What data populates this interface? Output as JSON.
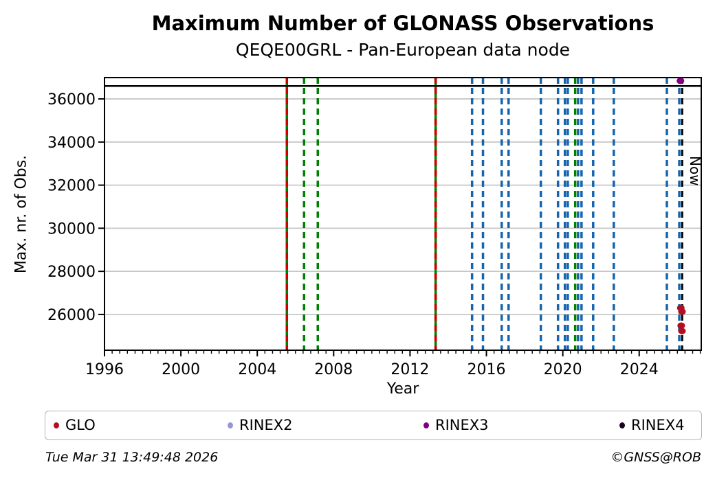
{
  "title": "Maximum Number of GLONASS Observations",
  "subtitle": "QEQE00GRL - Pan-European data node",
  "footer": {
    "timestamp": "Tue Mar 31 13:49:48 2026",
    "credit": "©GNSS@ROB"
  },
  "legend": {
    "items": [
      {
        "label": "GLO",
        "color": "#b01020"
      },
      {
        "label": "RINEX2",
        "color": "#9595d9"
      },
      {
        "label": "RINEX3",
        "color": "#800080"
      },
      {
        "label": "RINEX4",
        "color": "#1d0322"
      }
    ]
  },
  "chart_data": {
    "type": "scatter",
    "title": "Maximum Number of GLONASS Observations",
    "subtitle": "QEQE00GRL - Pan-European data node",
    "xlabel": "Year",
    "ylabel": "Max. nr. of Obs.",
    "xlim": [
      1996,
      2027.25
    ],
    "ylim": [
      24340,
      36990
    ],
    "xticks": [
      1996,
      2000,
      2004,
      2008,
      2012,
      2016,
      2020,
      2024
    ],
    "yticks": [
      26000,
      28000,
      30000,
      32000,
      34000,
      36000
    ],
    "x_minor_step": 0.4,
    "grid": "horizontal-only",
    "gridline_color": "#c6c6c6",
    "hline": {
      "y": 36600,
      "color": "#000000",
      "style": "solid"
    },
    "now_marker": {
      "x": 2026.25,
      "label": "Now",
      "color": "#000000",
      "style": "dashed"
    },
    "event_lines": [
      {
        "x": 2005.55,
        "color": "#008000",
        "style": "solid"
      },
      {
        "x": 2005.55,
        "color": "#cc0000",
        "style": "dashed"
      },
      {
        "x": 2006.45,
        "color": "#008000",
        "style": "dashed"
      },
      {
        "x": 2007.17,
        "color": "#008000",
        "style": "dashed"
      },
      {
        "x": 2013.34,
        "color": "#008000",
        "style": "solid"
      },
      {
        "x": 2013.34,
        "color": "#cc0000",
        "style": "dashed"
      },
      {
        "x": 2015.25,
        "color": "#1464af",
        "style": "dashed"
      },
      {
        "x": 2015.82,
        "color": "#1464af",
        "style": "dashed"
      },
      {
        "x": 2016.8,
        "color": "#1464af",
        "style": "dashed"
      },
      {
        "x": 2017.16,
        "color": "#1464af",
        "style": "dashed"
      },
      {
        "x": 2018.85,
        "color": "#1464af",
        "style": "dashed"
      },
      {
        "x": 2019.75,
        "color": "#1464af",
        "style": "dashed"
      },
      {
        "x": 2020.11,
        "color": "#1464af",
        "style": "dashed"
      },
      {
        "x": 2020.26,
        "color": "#1464af",
        "style": "dashed"
      },
      {
        "x": 2020.65,
        "color": "#008000",
        "style": "dashed"
      },
      {
        "x": 2020.8,
        "color": "#1464af",
        "style": "dashed"
      },
      {
        "x": 2020.98,
        "color": "#1464af",
        "style": "dashed"
      },
      {
        "x": 2021.59,
        "color": "#1464af",
        "style": "dashed"
      },
      {
        "x": 2022.67,
        "color": "#1464af",
        "style": "dashed"
      },
      {
        "x": 2025.45,
        "color": "#1464af",
        "style": "dashed"
      },
      {
        "x": 2026.1,
        "color": "#1464af",
        "style": "dashed"
      }
    ],
    "series": [
      {
        "name": "GLO",
        "color": "#b01020",
        "points": [
          [
            2026.18,
            26300
          ],
          [
            2026.24,
            26130
          ],
          [
            2026.2,
            25480
          ],
          [
            2026.24,
            25230
          ]
        ]
      },
      {
        "name": "RINEX2",
        "color": "#9595d9",
        "points": []
      },
      {
        "name": "RINEX3",
        "color": "#800080",
        "points": [
          [
            2026.16,
            36840
          ]
        ]
      },
      {
        "name": "RINEX4",
        "color": "#1d0322",
        "points": []
      }
    ]
  }
}
